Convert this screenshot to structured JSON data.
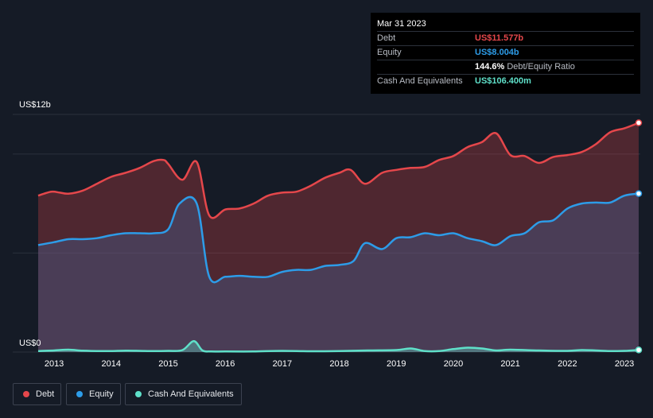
{
  "tooltip": {
    "date": "Mar 31 2023",
    "rows": [
      {
        "label": "Debt",
        "value": "US$11.577b",
        "color": "#e5474b"
      },
      {
        "label": "Equity",
        "value": "US$8.004b",
        "color": "#2d9ce8"
      },
      {
        "label": "",
        "value": "144.6%",
        "suffix": "Debt/Equity Ratio",
        "color": "#ffffff"
      },
      {
        "label": "Cash And Equivalents",
        "value": "US$106.400m",
        "color": "#5fe0c9"
      }
    ]
  },
  "legend": [
    {
      "label": "Debt",
      "color": "#e5474b"
    },
    {
      "label": "Equity",
      "color": "#2d9ce8"
    },
    {
      "label": "Cash And Equivalents",
      "color": "#5fe0c9"
    }
  ],
  "chart_data": {
    "type": "area",
    "y_top_label": "US$12b",
    "y_bottom_label": "US$0",
    "ylim": [
      0,
      12
    ],
    "xlim": [
      2012.72,
      2023.25
    ],
    "x_ticks": [
      "2013",
      "2014",
      "2015",
      "2016",
      "2017",
      "2018",
      "2019",
      "2020",
      "2021",
      "2022",
      "2023"
    ],
    "series": [
      {
        "name": "Debt",
        "color": "#e5474b",
        "x": [
          2012.72,
          2012.95,
          2013.1,
          2013.25,
          2013.5,
          2013.75,
          2014.0,
          2014.25,
          2014.5,
          2014.75,
          2014.92,
          2015.0,
          2015.25,
          2015.5,
          2015.72,
          2016.0,
          2016.25,
          2016.5,
          2016.75,
          2017.0,
          2017.25,
          2017.5,
          2017.75,
          2018.0,
          2018.2,
          2018.45,
          2018.75,
          2019.0,
          2019.25,
          2019.5,
          2019.75,
          2020.0,
          2020.25,
          2020.5,
          2020.75,
          2021.0,
          2021.25,
          2021.5,
          2021.75,
          2022.0,
          2022.25,
          2022.5,
          2022.75,
          2023.0,
          2023.25
        ],
        "values": [
          7.9,
          8.1,
          8.05,
          8.0,
          8.15,
          8.5,
          8.85,
          9.05,
          9.3,
          9.65,
          9.7,
          9.5,
          8.7,
          9.6,
          6.9,
          7.2,
          7.25,
          7.5,
          7.9,
          8.05,
          8.1,
          8.4,
          8.8,
          9.05,
          9.2,
          8.5,
          9.05,
          9.2,
          9.3,
          9.35,
          9.7,
          9.9,
          10.35,
          10.6,
          11.05,
          9.95,
          9.9,
          9.55,
          9.85,
          9.95,
          10.1,
          10.5,
          11.1,
          11.3,
          11.577
        ]
      },
      {
        "name": "Equity",
        "color": "#2d9ce8",
        "x": [
          2012.72,
          2013.0,
          2013.25,
          2013.5,
          2013.75,
          2014.0,
          2014.25,
          2014.5,
          2014.75,
          2015.0,
          2015.2,
          2015.5,
          2015.72,
          2016.0,
          2016.25,
          2016.5,
          2016.75,
          2017.0,
          2017.25,
          2017.5,
          2017.75,
          2018.0,
          2018.25,
          2018.45,
          2018.75,
          2019.0,
          2019.25,
          2019.5,
          2019.75,
          2020.0,
          2020.25,
          2020.5,
          2020.75,
          2021.0,
          2021.25,
          2021.5,
          2021.75,
          2022.0,
          2022.25,
          2022.5,
          2022.75,
          2023.0,
          2023.25
        ],
        "values": [
          5.4,
          5.55,
          5.7,
          5.7,
          5.75,
          5.9,
          6.0,
          6.0,
          6.0,
          6.2,
          7.5,
          7.5,
          3.8,
          3.8,
          3.85,
          3.8,
          3.8,
          4.05,
          4.15,
          4.15,
          4.35,
          4.4,
          4.6,
          5.5,
          5.2,
          5.75,
          5.8,
          6.0,
          5.9,
          6.0,
          5.75,
          5.6,
          5.4,
          5.85,
          6.0,
          6.55,
          6.65,
          7.25,
          7.5,
          7.55,
          7.55,
          7.9,
          8.004
        ]
      },
      {
        "name": "Cash And Equivalents",
        "color": "#5fe0c9",
        "x": [
          2012.72,
          2013.0,
          2013.25,
          2013.5,
          2013.75,
          2014.0,
          2014.25,
          2014.5,
          2014.75,
          2015.0,
          2015.25,
          2015.45,
          2015.6,
          2015.75,
          2016.0,
          2016.5,
          2017.0,
          2017.5,
          2018.0,
          2018.5,
          2019.0,
          2019.25,
          2019.5,
          2019.75,
          2020.0,
          2020.25,
          2020.5,
          2020.75,
          2021.0,
          2021.5,
          2022.0,
          2022.25,
          2022.5,
          2022.75,
          2023.0,
          2023.25
        ],
        "values": [
          0.05,
          0.08,
          0.12,
          0.07,
          0.05,
          0.05,
          0.07,
          0.06,
          0.05,
          0.06,
          0.1,
          0.55,
          0.08,
          0.03,
          0.03,
          0.03,
          0.06,
          0.04,
          0.05,
          0.08,
          0.1,
          0.18,
          0.05,
          0.05,
          0.15,
          0.22,
          0.18,
          0.08,
          0.12,
          0.08,
          0.06,
          0.1,
          0.08,
          0.05,
          0.06,
          0.1064
        ]
      }
    ]
  }
}
